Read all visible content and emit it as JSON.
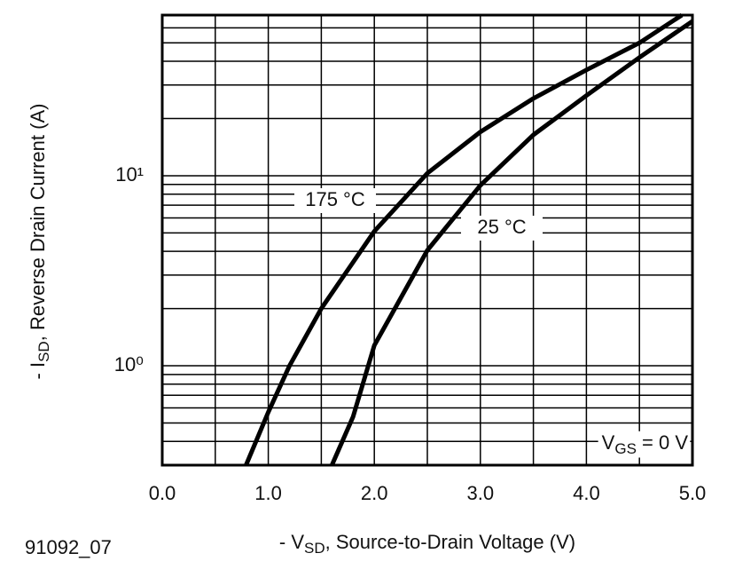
{
  "chart_data": {
    "type": "line",
    "log_y": true,
    "grid": true,
    "x_label": {
      "prefix": "- V",
      "sub": "SD",
      "rest": ", Source-to-Drain Voltage (V)"
    },
    "y_label": {
      "prefix": "- I",
      "sub": "SD",
      "rest": ", Reverse Drain Current (A)"
    },
    "figure_id": "91092_07",
    "condition": {
      "prefix": "V",
      "sub": "GS",
      "rest": " = 0 V"
    },
    "xlim": [
      0,
      5
    ],
    "ylim": [
      0.3,
      70
    ],
    "xticks": [
      {
        "value": 0,
        "label": "0.0"
      },
      {
        "value": 1,
        "label": "1.0"
      },
      {
        "value": 2,
        "label": "2.0"
      },
      {
        "value": 3,
        "label": "3.0"
      },
      {
        "value": 4,
        "label": "4.0"
      },
      {
        "value": 5,
        "label": "5.0"
      }
    ],
    "yticks": [
      {
        "value": 1,
        "label": "10⁰"
      },
      {
        "value": 10,
        "label": "10¹"
      }
    ],
    "xgrid": [
      0,
      0.5,
      1,
      1.5,
      2,
      2.5,
      3,
      3.5,
      4,
      4.5,
      5
    ],
    "ygrid": [
      0.3,
      0.4,
      0.5,
      0.6,
      0.7,
      0.8,
      0.9,
      1,
      2,
      3,
      4,
      5,
      6,
      7,
      8,
      9,
      10,
      20,
      30,
      40,
      50,
      60,
      70
    ],
    "series": [
      {
        "name": "175 °C",
        "color": "#000000",
        "x": [
          0.79,
          1.0,
          1.2,
          1.5,
          2.0,
          2.5,
          3.0,
          3.5,
          4.0,
          4.5,
          4.9
        ],
        "values": [
          0.3,
          0.57,
          1.0,
          2.0,
          5.1,
          10.3,
          17,
          25.5,
          36,
          50,
          70
        ]
      },
      {
        "name": "25 °C",
        "color": "#000000",
        "x": [
          1.6,
          1.8,
          2.0,
          2.5,
          3.0,
          3.5,
          4.0,
          4.5,
          5.0
        ],
        "values": [
          0.3,
          0.54,
          1.28,
          4.05,
          8.9,
          16.4,
          26.4,
          41.9,
          65
        ]
      }
    ]
  }
}
